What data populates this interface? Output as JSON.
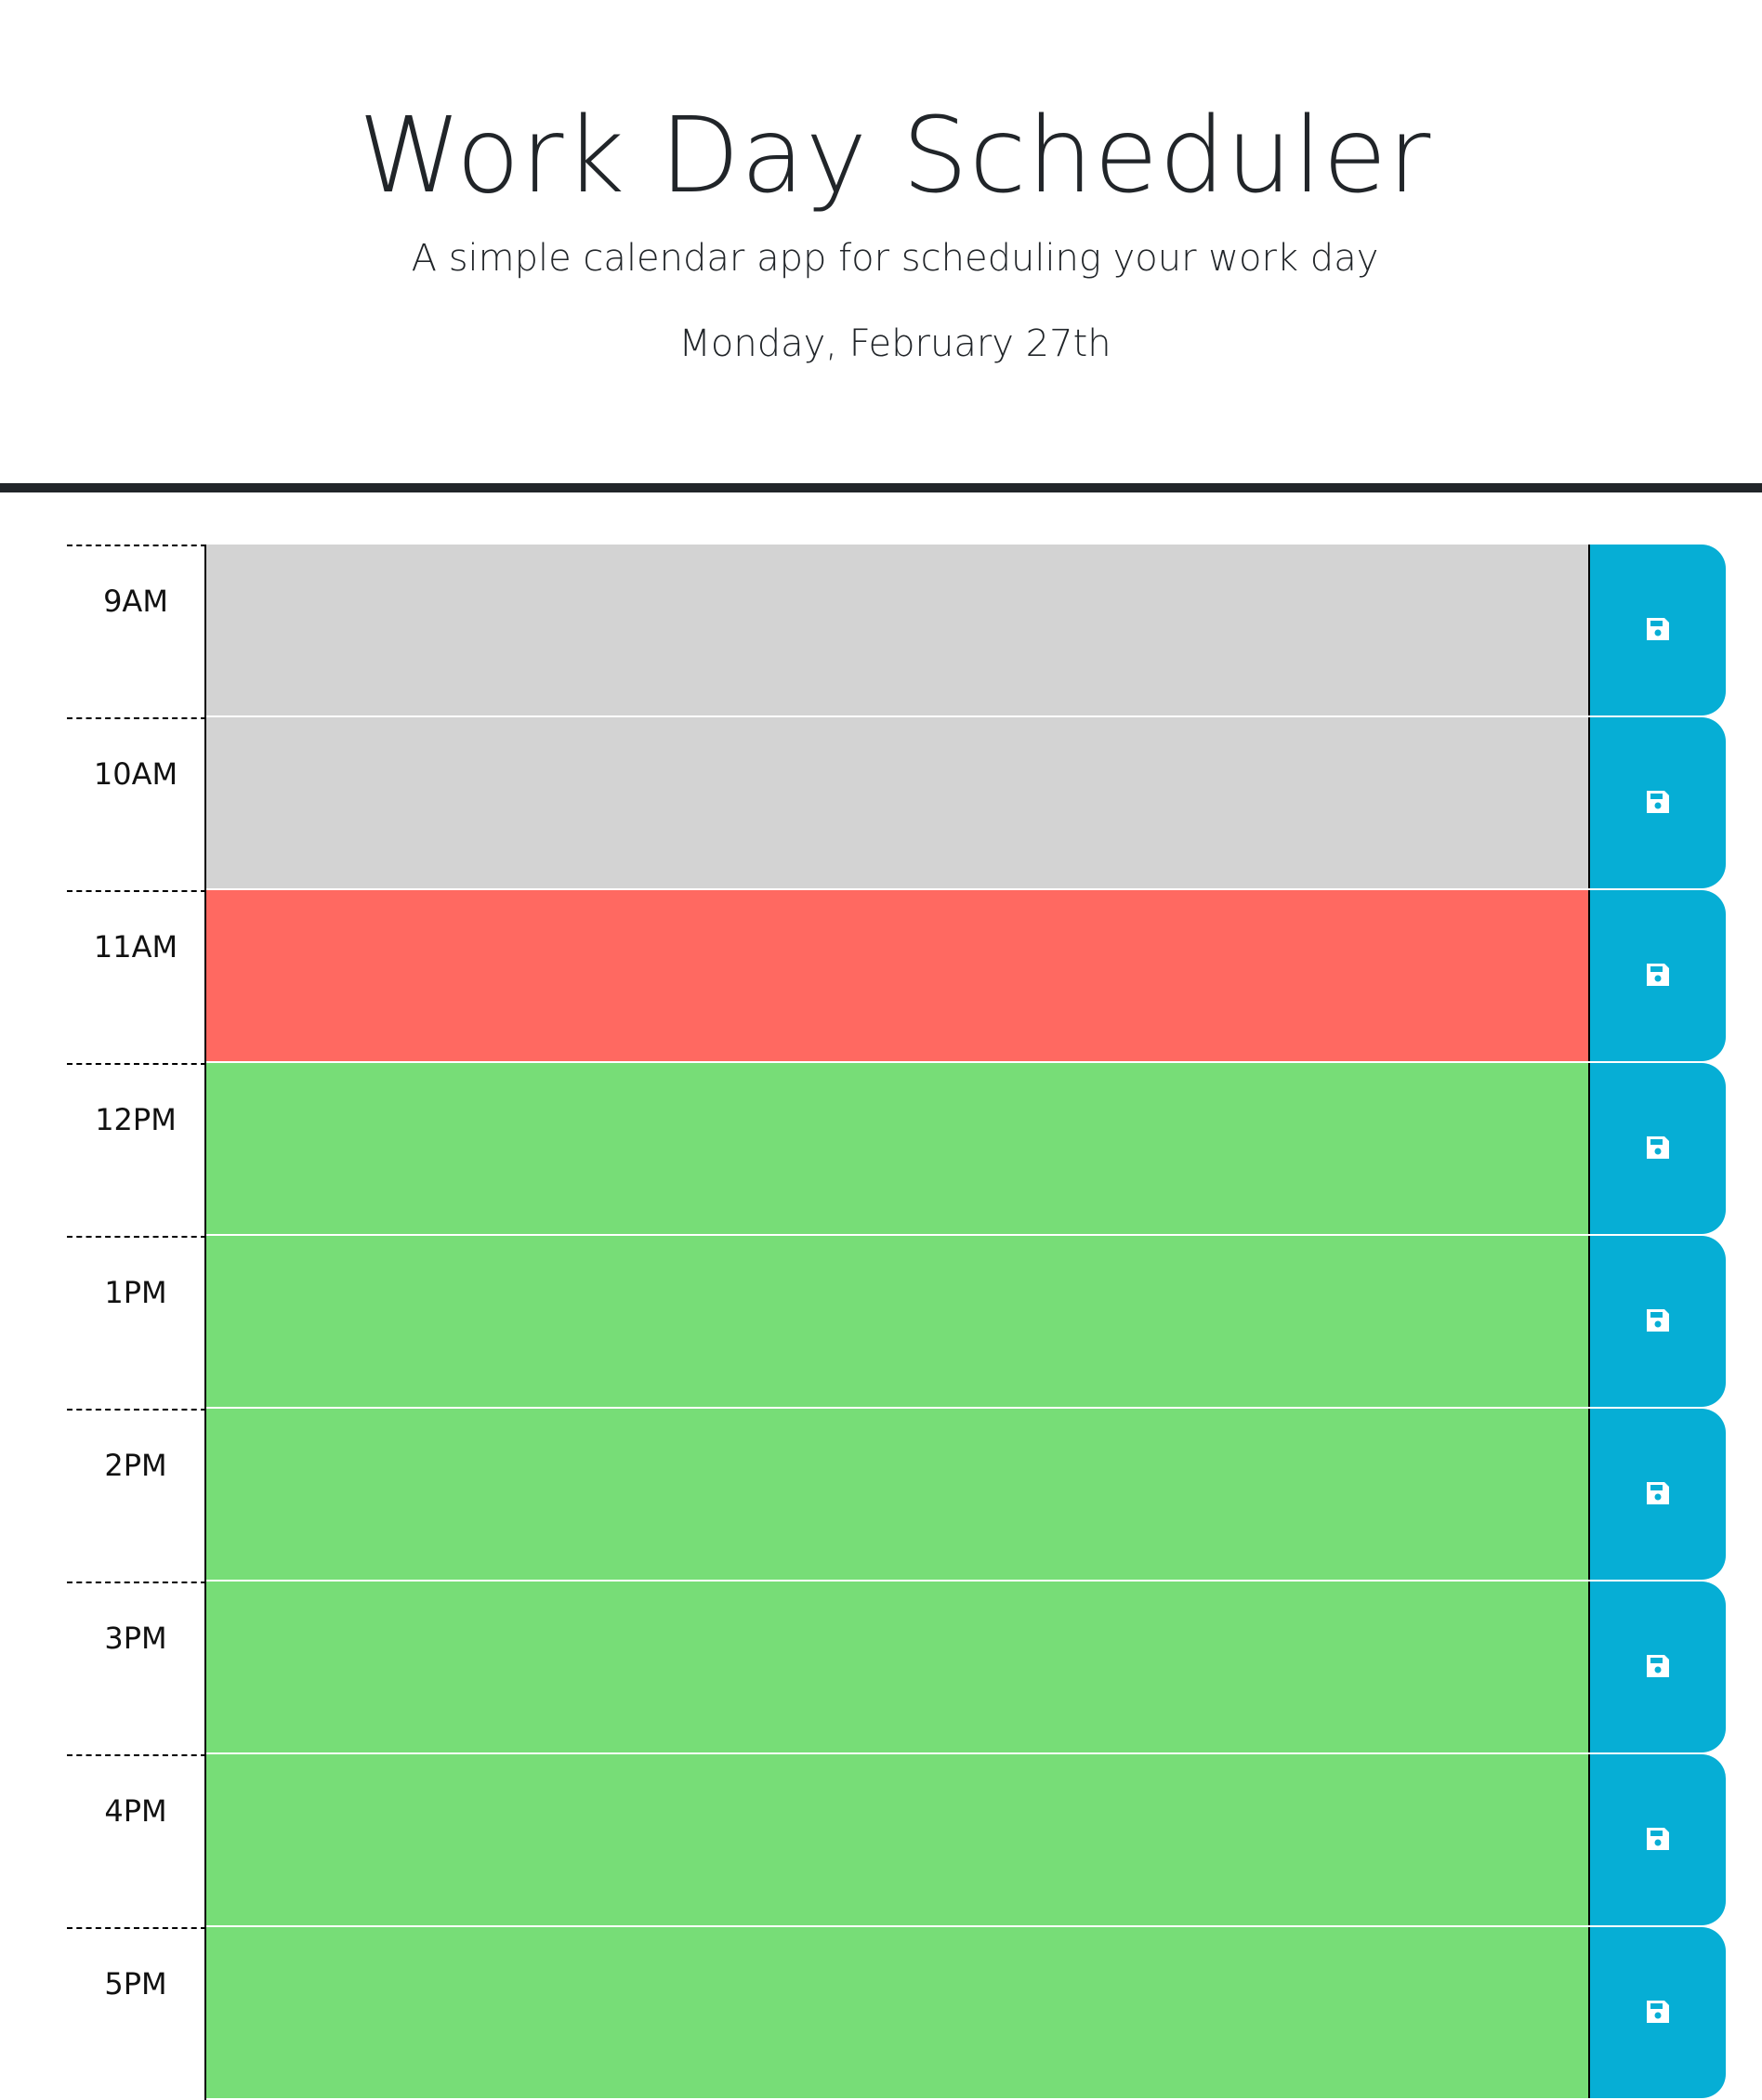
{
  "header": {
    "title": "Work Day Scheduler",
    "subtitle": "A simple calendar app for scheduling your work day",
    "current_day": "Monday, February 27th"
  },
  "colors": {
    "past": "#d3d3d3",
    "present": "#ff6961",
    "future": "#77dd77",
    "save_button": "#06aed5"
  },
  "time_blocks": [
    {
      "hour": "9AM",
      "state": "past",
      "text": ""
    },
    {
      "hour": "10AM",
      "state": "past",
      "text": ""
    },
    {
      "hour": "11AM",
      "state": "present",
      "text": ""
    },
    {
      "hour": "12PM",
      "state": "future",
      "text": ""
    },
    {
      "hour": "1PM",
      "state": "future",
      "text": ""
    },
    {
      "hour": "2PM",
      "state": "future",
      "text": ""
    },
    {
      "hour": "3PM",
      "state": "future",
      "text": ""
    },
    {
      "hour": "4PM",
      "state": "future",
      "text": ""
    },
    {
      "hour": "5PM",
      "state": "future",
      "text": ""
    }
  ],
  "icons": {
    "save": "floppy-disk-icon"
  }
}
